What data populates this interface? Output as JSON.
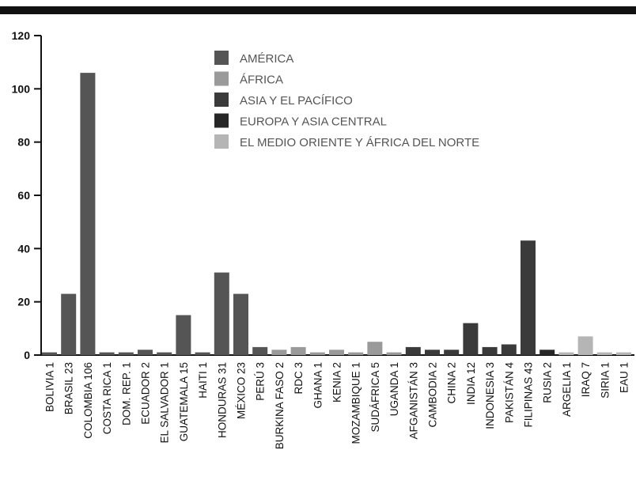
{
  "chart_data": {
    "type": "bar",
    "ylim": [
      0,
      120
    ],
    "yticks": [
      0,
      20,
      40,
      60,
      80,
      100,
      120
    ],
    "grid": false,
    "legend_position": "top-center",
    "categories": [
      "BOLIVIA 1",
      "BRASIL 23",
      "COLOMBIA 106",
      "COSTA RICA 1",
      "DOM. REP. 1",
      "ECUADOR 2",
      "EL SALVADOR 1",
      "GUATEMALA 15",
      "HAITI 1",
      "HONDURAS 31",
      "MÉXICO 23",
      "PERÚ 3",
      "BURKINA FASO 2",
      "RDC 3",
      "GHANA 1",
      "KENIA 2",
      "MOZAMBIQUE 1",
      "SUDÁFRICA 5",
      "UGANDA 1",
      "AFGANISTÁN 3",
      "CAMBODIA 2",
      "CHINA 2",
      "INDIA 12",
      "INDONESIA 3",
      "PAKISTÁN 4",
      "FILIPINAS 43",
      "RUSIA 2",
      "ARGELIA 1",
      "IRAQ 7",
      "SIRIA 1",
      "EAU 1"
    ],
    "values": [
      1,
      23,
      106,
      1,
      1,
      2,
      1,
      15,
      1,
      31,
      23,
      3,
      2,
      3,
      1,
      2,
      1,
      5,
      1,
      3,
      2,
      2,
      12,
      3,
      4,
      43,
      2,
      1,
      7,
      1,
      1
    ],
    "region_of": [
      0,
      0,
      0,
      0,
      0,
      0,
      0,
      0,
      0,
      0,
      0,
      0,
      1,
      1,
      1,
      1,
      1,
      1,
      1,
      2,
      2,
      2,
      2,
      2,
      2,
      2,
      3,
      4,
      4,
      4,
      4
    ],
    "series": [
      {
        "name": "AMÉRICA",
        "color": "#555555"
      },
      {
        "name": "ÁFRICA",
        "color": "#9a9a9a"
      },
      {
        "name": "ASIA Y EL PACÍFICO",
        "color": "#3a3a3a"
      },
      {
        "name": "EUROPA Y ASIA CENTRAL",
        "color": "#262626"
      },
      {
        "name": "EL MEDIO ORIENTE Y ÁFRICA DEL NORTE",
        "color": "#b5b5b5"
      }
    ]
  }
}
